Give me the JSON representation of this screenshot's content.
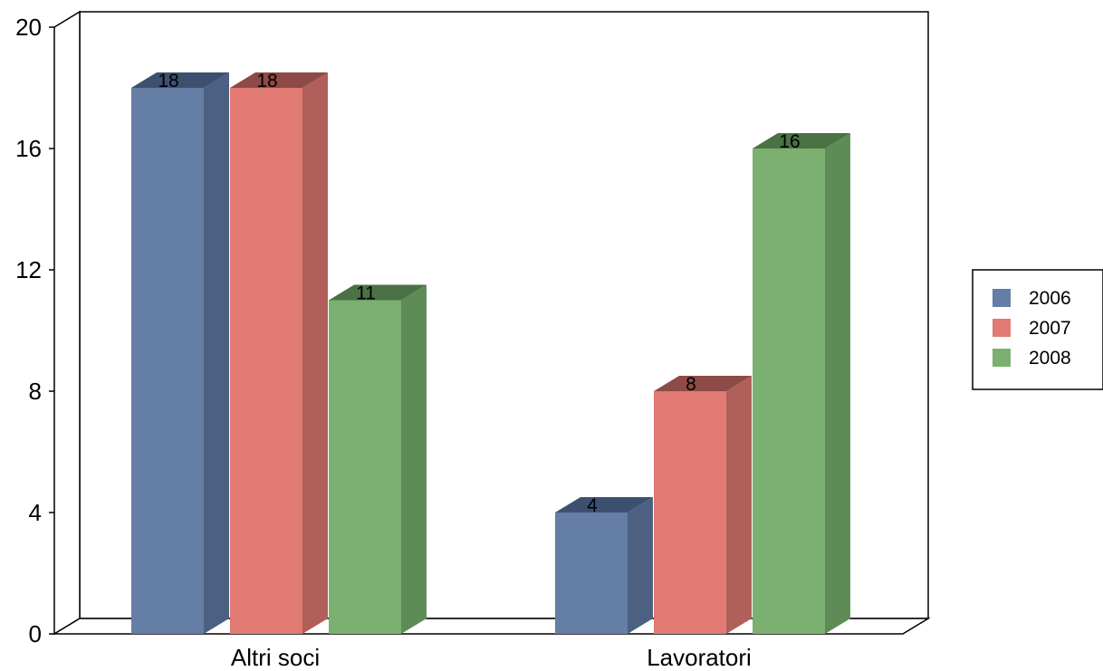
{
  "chart_data": {
    "type": "bar",
    "title": "",
    "xlabel": "",
    "ylabel": "",
    "categories": [
      "Altri soci",
      "Lavoratori"
    ],
    "series": [
      {
        "name": "2006",
        "values": [
          18,
          4
        ],
        "color": "#647ea6",
        "side_color": "#4c6182",
        "top_color": "#3e5070"
      },
      {
        "name": "2007",
        "values": [
          18,
          8
        ],
        "color": "#e07a73",
        "side_color": "#b05f5a",
        "top_color": "#8e4a46"
      },
      {
        "name": "2008",
        "values": [
          11,
          16
        ],
        "color": "#7bb070",
        "side_color": "#5f8c56",
        "top_color": "#4a7244"
      }
    ],
    "ylim": [
      0,
      20
    ],
    "yticks": [
      "0",
      "4",
      "8",
      "12",
      "16",
      "20"
    ],
    "data_labels": [
      [
        "18",
        "4"
      ],
      [
        "18",
        "8"
      ],
      [
        "11",
        "16"
      ]
    ],
    "grid": false,
    "legend_position": "right",
    "style": "3d-clustered-column"
  }
}
